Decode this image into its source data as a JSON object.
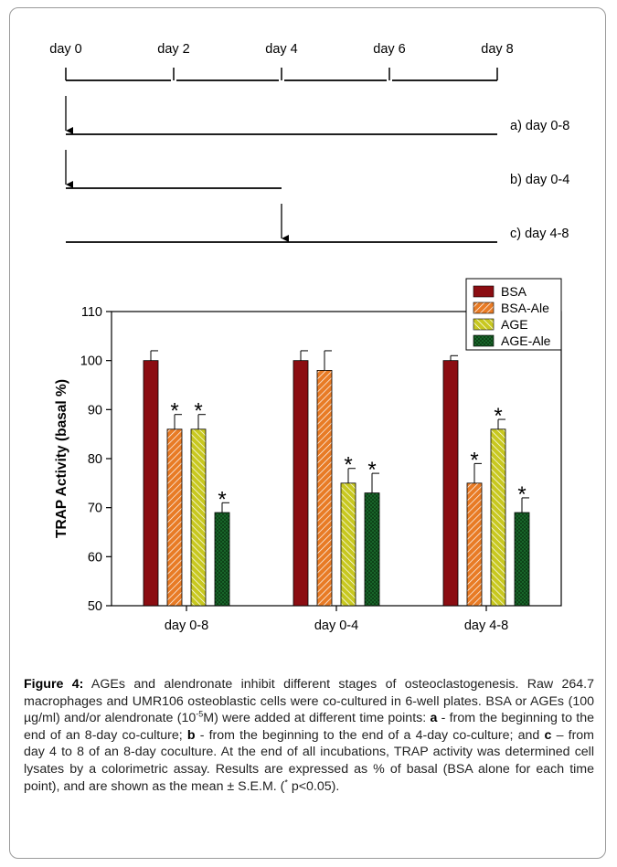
{
  "timeline": {
    "days": [
      "day 0",
      "day 2",
      "day 4",
      "day 6",
      "day 8"
    ],
    "conditions": [
      {
        "label": "a) day 0-8",
        "start_day": 0,
        "end_day": 8,
        "arrow_day": 0
      },
      {
        "label": "b) day 0-4",
        "start_day": 0,
        "end_day": 4,
        "arrow_day": 0
      },
      {
        "label": "c) day 4-8",
        "start_day": 0,
        "end_day": 8,
        "arrow_day": 4
      }
    ]
  },
  "chart_data": {
    "type": "bar",
    "title": "",
    "xlabel": "",
    "ylabel": "TRAP Activity (basal %)",
    "ylim": [
      50,
      110
    ],
    "yticks": [
      50,
      60,
      70,
      80,
      90,
      100,
      110
    ],
    "categories": [
      "day 0-8",
      "day 0-4",
      "day 4-8"
    ],
    "legend_position": "top-right",
    "series": [
      {
        "name": "BSA",
        "color": "#8b0d12",
        "pattern": "solid",
        "values": [
          100,
          100,
          100
        ],
        "errors": [
          2,
          2,
          1
        ],
        "significant": [
          false,
          false,
          false
        ]
      },
      {
        "name": "BSA-Ale",
        "color": "#e87b25",
        "pattern": "hatch-diagonal",
        "values": [
          86,
          98,
          75
        ],
        "errors": [
          3,
          4,
          4
        ],
        "significant": [
          true,
          false,
          true
        ]
      },
      {
        "name": "AGE",
        "color": "#c8c820",
        "pattern": "hatch-back-diagonal",
        "values": [
          86,
          75,
          86
        ],
        "errors": [
          3,
          3,
          2
        ],
        "significant": [
          true,
          true,
          true
        ]
      },
      {
        "name": "AGE-Ale",
        "color": "#1a6e2e",
        "pattern": "crosshatch",
        "values": [
          69,
          73,
          69
        ],
        "errors": [
          2,
          4,
          3
        ],
        "significant": [
          true,
          true,
          true
        ]
      }
    ],
    "significance_marker": "*"
  },
  "caption": {
    "label": "Figure 4:",
    "seg1": " AGEs and alendronate inhibit different stages of osteoclastogenesis. Raw 264.7 macrophages and UMR106 osteoblastic cells were co-cultured in 6-well plates. BSA or AGEs (100 µg/ml) and/or alendronate (10",
    "sup1": "-5",
    "seg2": "M) were added at different time points: ",
    "bold_a": "a",
    "seg3": " - from the beginning to the end of an 8-day co-culture; ",
    "bold_b": "b",
    "seg4": " - from the beginning to the end of a 4-day co-culture; and ",
    "bold_c": "c",
    "seg5": " – from day 4 to 8 of an 8-day coculture. At the end of all incubations, TRAP activity was determined cell lysates by a colorimetric assay. Results are expressed as % of basal (BSA alone for each time point), and are shown as the mean ± S.E.M. (",
    "sup2": "*",
    "seg6": " p<0.05)."
  }
}
